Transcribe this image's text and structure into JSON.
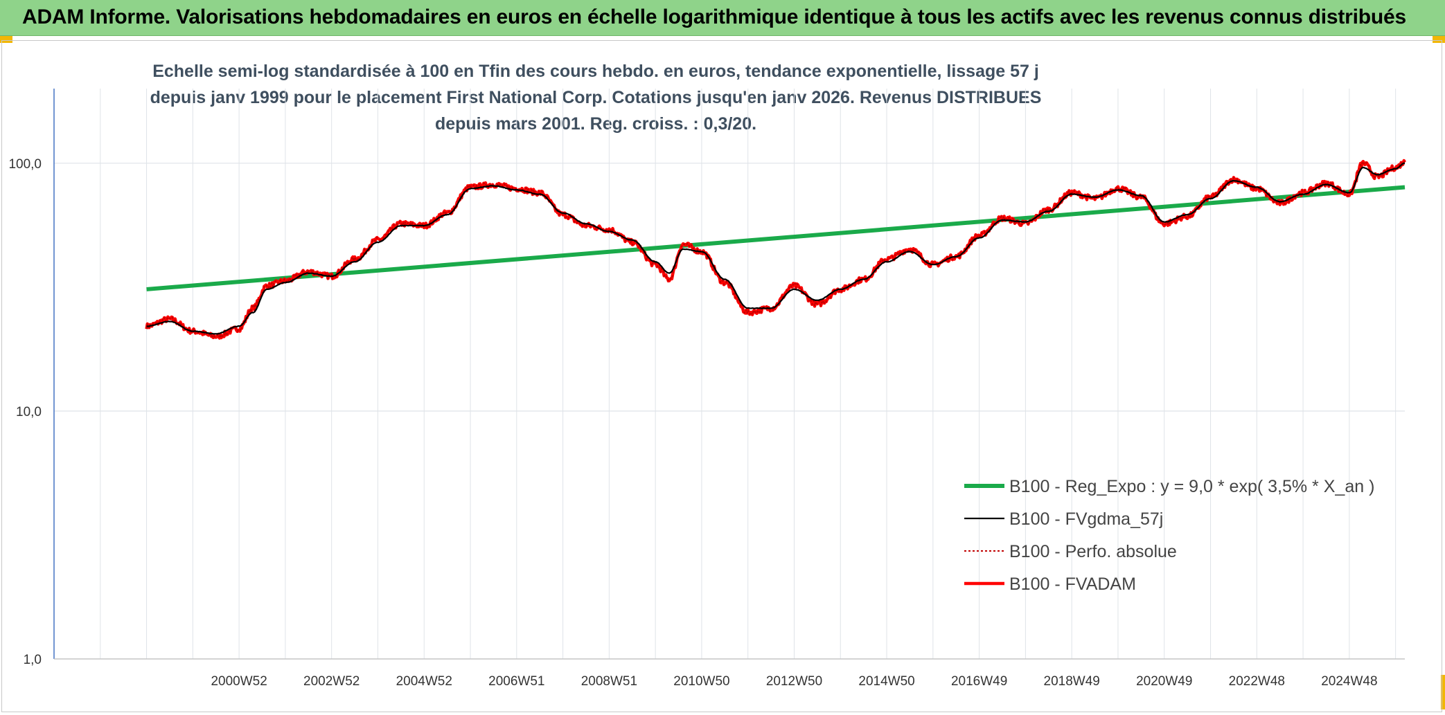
{
  "banner": {
    "title": "ADAM Informe. Valorisations hebdomadaires en euros en échelle logarithmique identique à tous les actifs avec les revenus connus distribués"
  },
  "chart_data": {
    "type": "line",
    "title": "Echelle semi-log standardisée à 100 en Tfin des cours hebdo. en euros, tendance exponentielle, lissage 57 j depuis janv 1999 pour le placement First National Corp. Cotations jusqu'en janv 2026. Revenus DISTRIBUES depuis mars 2001. Reg. croiss. : 0,3/20.",
    "y_scale": "log",
    "ylim": [
      1,
      200
    ],
    "y_ticks": [
      {
        "value": 1,
        "label": "1,0"
      },
      {
        "value": 10,
        "label": "10,0"
      },
      {
        "value": 100,
        "label": "100,0"
      }
    ],
    "xlim": [
      1997.0,
      2026.2
    ],
    "x_ticks": [
      {
        "value": 2001.0,
        "label": "2000W52"
      },
      {
        "value": 2003.0,
        "label": "2002W52"
      },
      {
        "value": 2005.0,
        "label": "2004W52"
      },
      {
        "value": 2007.0,
        "label": "2006W51"
      },
      {
        "value": 2009.0,
        "label": "2008W51"
      },
      {
        "value": 2011.0,
        "label": "2010W50"
      },
      {
        "value": 2013.0,
        "label": "2012W50"
      },
      {
        "value": 2015.0,
        "label": "2014W50"
      },
      {
        "value": 2017.0,
        "label": "2016W49"
      },
      {
        "value": 2019.0,
        "label": "2018W49"
      },
      {
        "value": 2021.0,
        "label": "2020W49"
      },
      {
        "value": 2023.0,
        "label": "2022W48"
      },
      {
        "value": 2025.0,
        "label": "2024W48"
      }
    ],
    "grid": true,
    "legend_position": "bottom-right",
    "colors": {
      "regression": "#1aaa4a",
      "smoothed": "#000000",
      "absolute": "#c00000",
      "fvadam": "#ff0000"
    },
    "series": [
      {
        "name": "B100 - Reg_Expo : y = 9,0 * exp( 3,5% *  X_an )",
        "style": "regression",
        "x": [
          1999.0,
          2026.2
        ],
        "y": [
          31,
          80
        ]
      },
      {
        "name": "B100 - FVgdma_57j",
        "style": "smoothed",
        "x": [
          1999.0,
          1999.5,
          2000.0,
          2000.5,
          2001.0,
          2001.3,
          2001.6,
          2002.0,
          2002.5,
          2003.0,
          2003.5,
          2004.0,
          2004.5,
          2005.0,
          2005.5,
          2006.0,
          2006.5,
          2007.0,
          2007.5,
          2008.0,
          2008.5,
          2009.0,
          2009.5,
          2010.0,
          2010.3,
          2010.6,
          2011.0,
          2011.5,
          2012.0,
          2012.5,
          2013.0,
          2013.5,
          2014.0,
          2014.5,
          2015.0,
          2015.5,
          2016.0,
          2016.5,
          2017.0,
          2017.5,
          2018.0,
          2018.5,
          2019.0,
          2019.5,
          2020.0,
          2020.5,
          2021.0,
          2021.5,
          2022.0,
          2022.5,
          2023.0,
          2023.5,
          2024.0,
          2024.5,
          2025.0,
          2025.3,
          2025.6,
          2026.0,
          2026.2
        ],
        "y": [
          22,
          23,
          21,
          20.5,
          22,
          25,
          31,
          33,
          36,
          35,
          40,
          48,
          56,
          56,
          62,
          79,
          81,
          78,
          75,
          63,
          57,
          53,
          49,
          40,
          36,
          45,
          44,
          34,
          26,
          26,
          31,
          28,
          31,
          34,
          40,
          44,
          39,
          42,
          50,
          59,
          58,
          64,
          75,
          73,
          78,
          74,
          58,
          62,
          72,
          85,
          80,
          70,
          75,
          82,
          76,
          96,
          90,
          95,
          100
        ]
      },
      {
        "name": "B100 - Perfo. absolue",
        "style": "absolute",
        "x": [
          1999.0,
          1999.5,
          2000.0,
          2000.5,
          2001.0,
          2001.3,
          2001.6,
          2002.0,
          2002.5,
          2003.0,
          2003.5,
          2004.0,
          2004.5,
          2005.0,
          2005.5,
          2006.0,
          2006.5,
          2007.0,
          2007.5,
          2008.0,
          2008.5,
          2009.0,
          2009.5,
          2010.0,
          2010.3,
          2010.6,
          2011.0,
          2011.5,
          2012.0,
          2012.5,
          2013.0,
          2013.5,
          2014.0,
          2014.5,
          2015.0,
          2015.5,
          2016.0,
          2016.5,
          2017.0,
          2017.5,
          2018.0,
          2018.5,
          2019.0,
          2019.5,
          2020.0,
          2020.5,
          2021.0,
          2021.5,
          2022.0,
          2022.5,
          2023.0,
          2023.5,
          2024.0,
          2024.5,
          2025.0,
          2025.3,
          2025.6,
          2026.0,
          2026.2
        ],
        "y": [
          22,
          23.5,
          21,
          20,
          21.5,
          26,
          32,
          33.5,
          36.5,
          35,
          41,
          49,
          57,
          56,
          63,
          80,
          82,
          79,
          76,
          62,
          56,
          54,
          48,
          39,
          34,
          47,
          44,
          33,
          25,
          26,
          32,
          27,
          31,
          34,
          41,
          45,
          39,
          42,
          51,
          60,
          57,
          65,
          76,
          72,
          79,
          73,
          57,
          61,
          73,
          86,
          79,
          69,
          76,
          83,
          75,
          100,
          88,
          96,
          101
        ]
      },
      {
        "name": "B100 - FVADAM",
        "style": "fvadam",
        "x": [
          1999.0,
          1999.5,
          2000.0,
          2000.5,
          2001.0,
          2001.3,
          2001.6,
          2002.0,
          2002.5,
          2003.0,
          2003.5,
          2004.0,
          2004.5,
          2005.0,
          2005.5,
          2006.0,
          2006.5,
          2007.0,
          2007.5,
          2008.0,
          2008.5,
          2009.0,
          2009.5,
          2010.0,
          2010.3,
          2010.6,
          2011.0,
          2011.5,
          2012.0,
          2012.5,
          2013.0,
          2013.5,
          2014.0,
          2014.5,
          2015.0,
          2015.5,
          2016.0,
          2016.5,
          2017.0,
          2017.5,
          2018.0,
          2018.5,
          2019.0,
          2019.5,
          2020.0,
          2020.5,
          2021.0,
          2021.5,
          2022.0,
          2022.5,
          2023.0,
          2023.5,
          2024.0,
          2024.5,
          2025.0,
          2025.3,
          2025.6,
          2026.0,
          2026.2
        ],
        "y": [
          22,
          23.5,
          21,
          20,
          21.5,
          26,
          32,
          33.5,
          36.5,
          35,
          41,
          49,
          57,
          56,
          63,
          80,
          82,
          79,
          76,
          62,
          56,
          54,
          48,
          39,
          34,
          47,
          44,
          33,
          25,
          26,
          32,
          27,
          31,
          34,
          41,
          45,
          39,
          42,
          51,
          60,
          57,
          65,
          76,
          72,
          79,
          73,
          57,
          61,
          73,
          86,
          79,
          69,
          76,
          83,
          75,
          100,
          88,
          96,
          101
        ]
      }
    ]
  }
}
